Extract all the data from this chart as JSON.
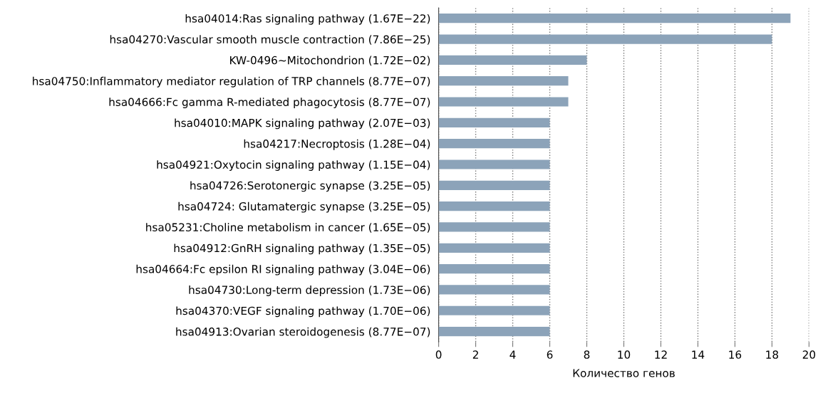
{
  "chart_data": {
    "type": "bar",
    "orientation": "horizontal",
    "xlabel": "Количество генов",
    "categories": [
      "hsa04014:Ras signaling pathway (1.67E−22)",
      "hsa04270:Vascular smooth muscle contraction (7.86E−25)",
      "KW-0496~Mitochondrion (1.72E−02)",
      "hsa04750:Inflammatory mediator regulation of TRP channels (8.77E−07)",
      "hsa04666:Fc gamma R-mediated phagocytosis (8.77E−07)",
      "hsa04010:MAPK signaling pathway (2.07E−03)",
      "hsa04217:Necroptosis (1.28E−04)",
      "hsa04921:Oxytocin signaling pathway (1.15E−04)",
      "hsa04726:Serotonergic synapse (3.25E−05)",
      "hsa04724: Glutamatergic synapse (3.25E−05)",
      "hsa05231:Choline metabolism in cancer (1.65E−05)",
      "hsa04912:GnRH signaling pathway (1.35E−05)",
      "hsa04664:Fc epsilon RI signaling pathway (3.04E−06)",
      "hsa04730:Long-term depression (1.73E−06)",
      "hsa04370:VEGF signaling pathway (1.70E−06)",
      "hsa04913:Ovarian steroidogenesis (8.77E−07)"
    ],
    "values": [
      19,
      18,
      8,
      7,
      7,
      6,
      6,
      6,
      6,
      6,
      6,
      6,
      6,
      6,
      6,
      6
    ],
    "color": "#8ca3b9",
    "xlim": [
      0,
      20
    ],
    "xticks": [
      0,
      2,
      4,
      6,
      8,
      10,
      12,
      14,
      16,
      18,
      20
    ],
    "grid": "x",
    "legend": false
  }
}
